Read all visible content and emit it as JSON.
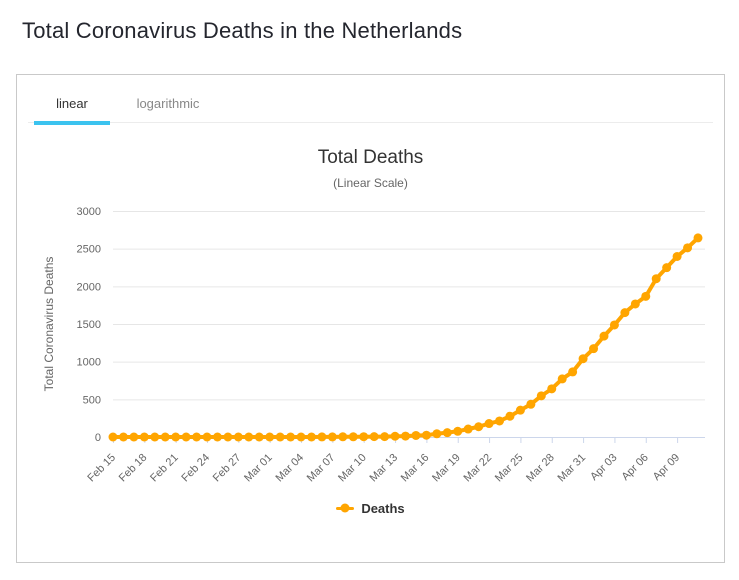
{
  "page": {
    "title": "Total Coronavirus Deaths in the Netherlands"
  },
  "tabs": [
    {
      "label": "linear",
      "active": true
    },
    {
      "label": "logarithmic",
      "active": false
    }
  ],
  "chart": {
    "title": "Total Deaths",
    "subtitle": "(Linear Scale)",
    "y_axis_title": "Total Coronavirus Deaths",
    "legend_label": "Deaths"
  },
  "colors": {
    "series": "#FFA500",
    "tab_underline": "#3BC3EF",
    "grid": "#E6E6E6",
    "axis_line": "#CCD6EB",
    "tick_text": "#666666"
  },
  "chart_data": {
    "type": "line",
    "title": "Total Deaths",
    "subtitle": "(Linear Scale)",
    "xlabel": "",
    "ylabel": "Total Coronavirus Deaths",
    "ylim": [
      0,
      3000
    ],
    "yticks": [
      0,
      500,
      1000,
      1500,
      2000,
      2500,
      3000
    ],
    "xtick_every": 3,
    "grid": true,
    "legend_position": "bottom",
    "x": [
      "Feb 15",
      "Feb 16",
      "Feb 17",
      "Feb 18",
      "Feb 19",
      "Feb 20",
      "Feb 21",
      "Feb 22",
      "Feb 23",
      "Feb 24",
      "Feb 25",
      "Feb 26",
      "Feb 27",
      "Feb 28",
      "Feb 29",
      "Mar 01",
      "Mar 02",
      "Mar 03",
      "Mar 04",
      "Mar 05",
      "Mar 06",
      "Mar 07",
      "Mar 08",
      "Mar 09",
      "Mar 10",
      "Mar 11",
      "Mar 12",
      "Mar 13",
      "Mar 14",
      "Mar 15",
      "Mar 16",
      "Mar 17",
      "Mar 18",
      "Mar 19",
      "Mar 20",
      "Mar 21",
      "Mar 22",
      "Mar 23",
      "Mar 24",
      "Mar 25",
      "Mar 26",
      "Mar 27",
      "Mar 28",
      "Mar 29",
      "Mar 30",
      "Mar 31",
      "Apr 01",
      "Apr 02",
      "Apr 03",
      "Apr 04",
      "Apr 05",
      "Apr 06",
      "Apr 07",
      "Apr 08",
      "Apr 09",
      "Apr 10",
      "Apr 11"
    ],
    "series": [
      {
        "name": "Deaths",
        "values": [
          0,
          0,
          0,
          0,
          0,
          0,
          0,
          0,
          0,
          0,
          0,
          0,
          0,
          0,
          0,
          0,
          0,
          0,
          0,
          0,
          1,
          1,
          3,
          3,
          4,
          5,
          5,
          10,
          12,
          20,
          24,
          43,
          58,
          76,
          106,
          136,
          179,
          213,
          276,
          356,
          434,
          546,
          639,
          771,
          864,
          1039,
          1173,
          1339,
          1487,
          1651,
          1766,
          1867,
          2101,
          2248,
          2396,
          2511,
          2643
        ]
      }
    ]
  }
}
